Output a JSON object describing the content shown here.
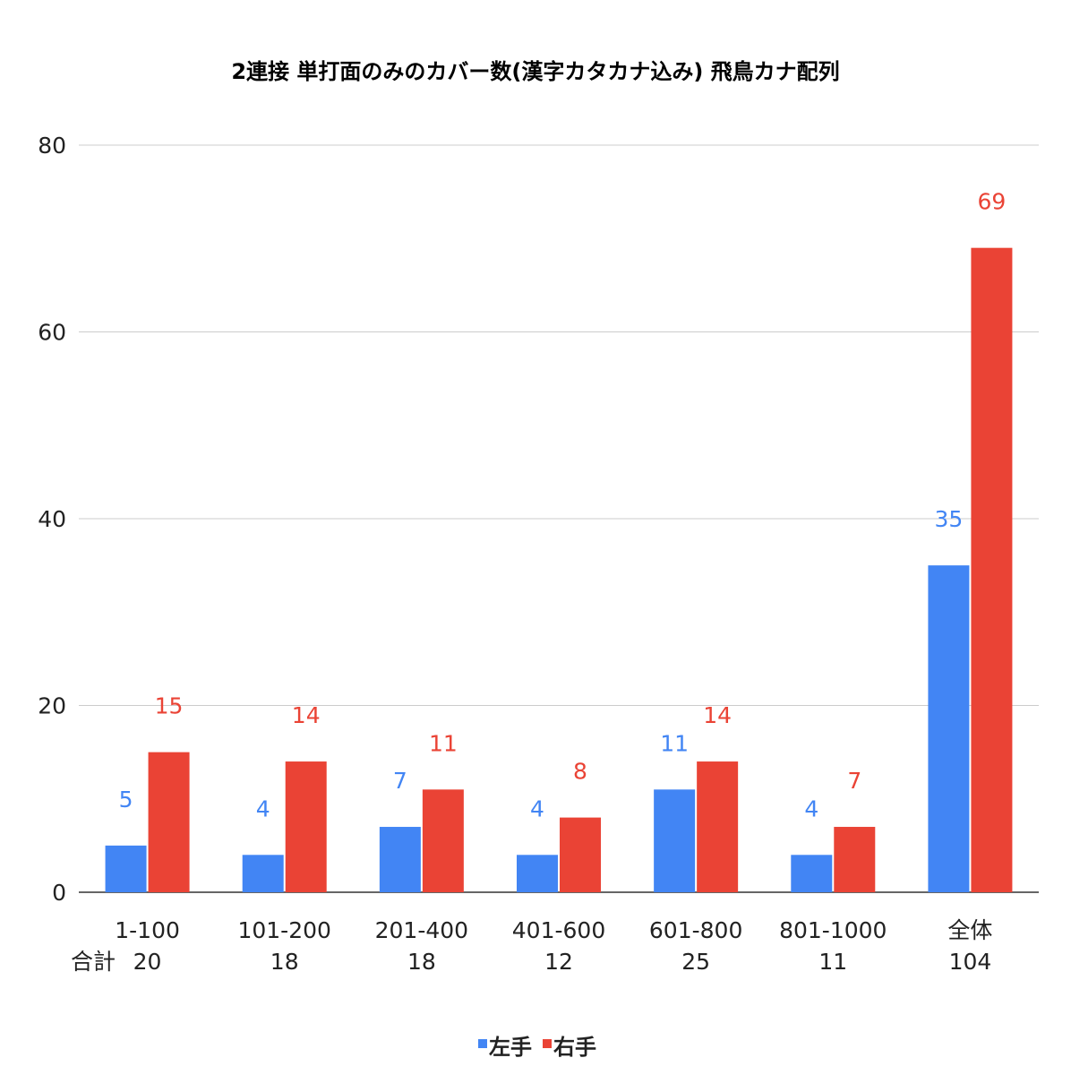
{
  "chart_data": {
    "type": "bar",
    "title": "2連接 単打面のみのカバー数(漢字カタカナ込み)  飛鳥カナ配列",
    "xlabel": "",
    "ylabel": "",
    "ylim": [
      0,
      80
    ],
    "y_ticks": [
      "0",
      "20",
      "40",
      "60",
      "80"
    ],
    "grid": true,
    "legend_position": "bottom",
    "totals_label": "合計",
    "categories": [
      "1-100",
      "101-200",
      "201-400",
      "401-600",
      "601-800",
      "801-1000",
      "全体"
    ],
    "totals": [
      "20",
      "18",
      "18",
      "12",
      "25",
      "11",
      "104"
    ],
    "series": [
      {
        "name": "左手",
        "color": "#4285f4",
        "values": [
          5,
          4,
          7,
          4,
          11,
          4,
          35
        ]
      },
      {
        "name": "右手",
        "color": "#ea4335",
        "values": [
          15,
          14,
          11,
          8,
          14,
          7,
          69
        ]
      }
    ]
  }
}
